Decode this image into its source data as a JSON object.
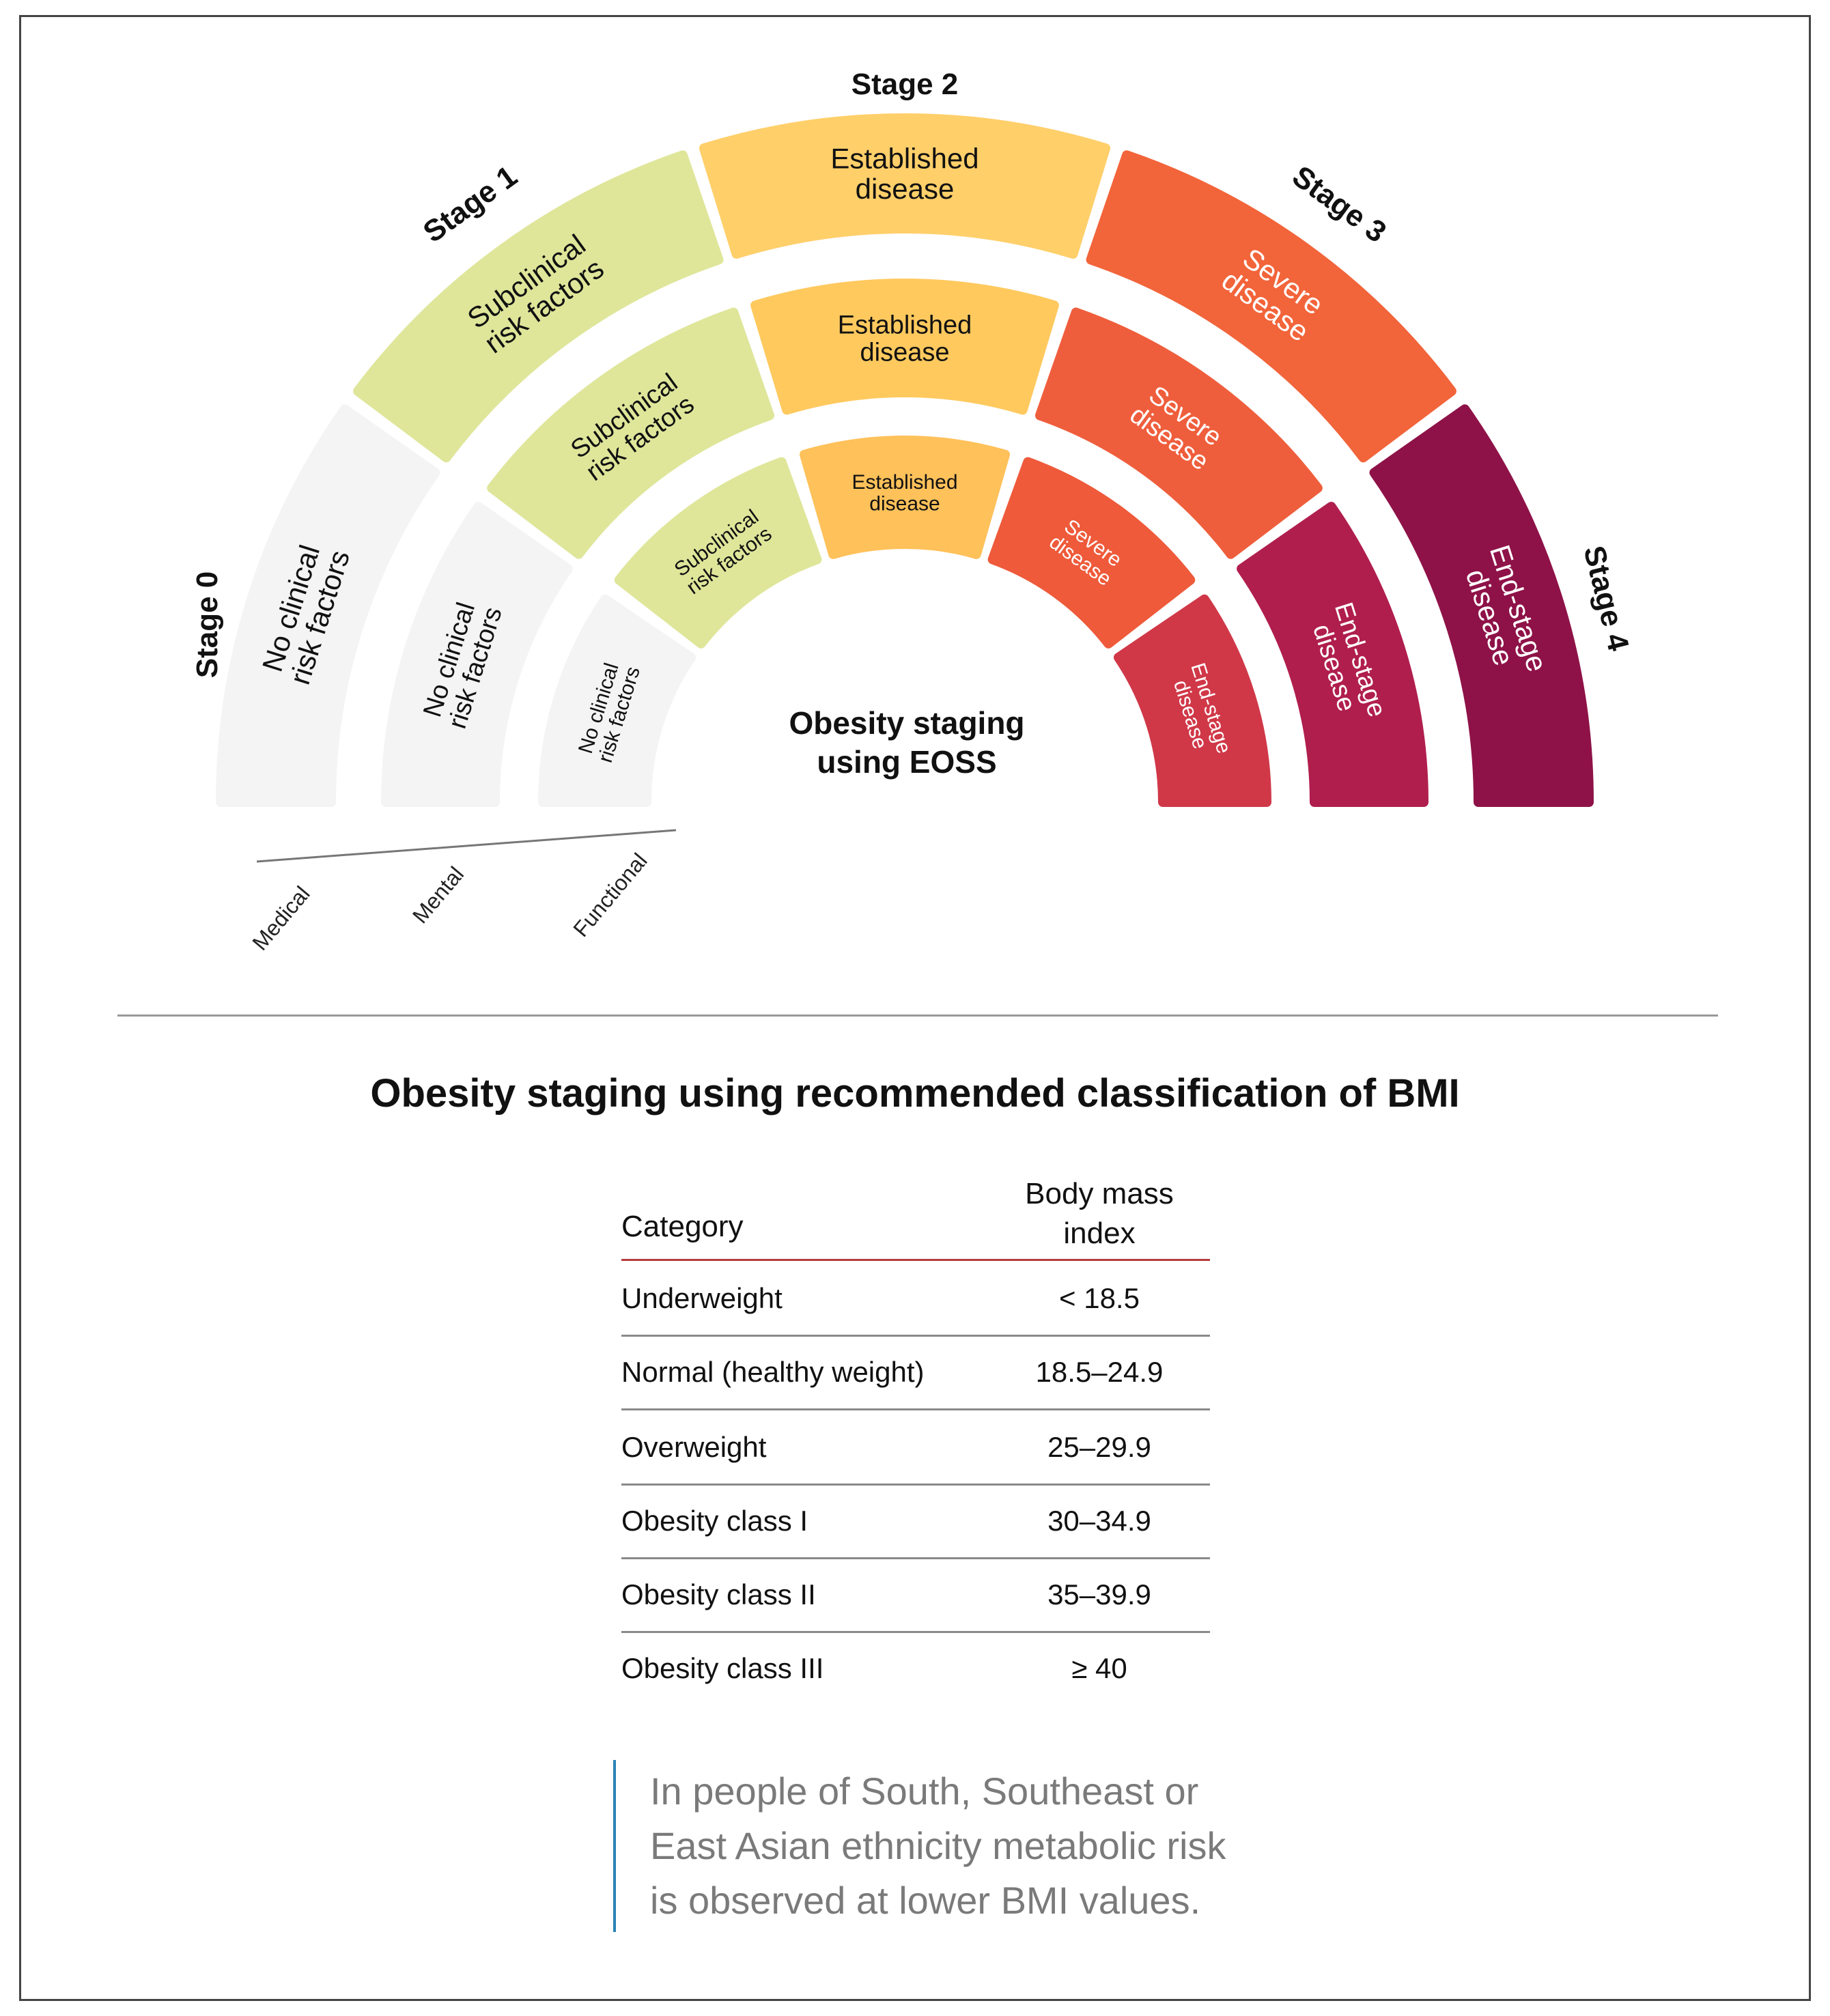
{
  "diagram": {
    "center_title_line1": "Obesity staging",
    "center_title_line2": "using EOSS",
    "stage_labels": [
      "Stage 0",
      "Stage 1",
      "Stage 2",
      "Stage 3",
      "Stage 4"
    ],
    "axis_labels": [
      "Medical",
      "Mental",
      "Functional"
    ],
    "rings": [
      {
        "name": "medical",
        "segments": [
          {
            "lines": [
              "No clinical",
              "risk factors"
            ],
            "color": "#f4f4f5",
            "text_color": "#111111"
          },
          {
            "lines": [
              "Subclinical",
              "risk factors"
            ],
            "color": "#dfe69a",
            "text_color": "#111111"
          },
          {
            "lines": [
              "Established",
              "disease"
            ],
            "color": "#ffcf6a",
            "text_color": "#111111"
          },
          {
            "lines": [
              "Severe",
              "disease"
            ],
            "color": "#f2643a",
            "text_color": "#ffffff"
          },
          {
            "lines": [
              "End-stage",
              "disease"
            ],
            "color": "#8e1248",
            "text_color": "#ffffff"
          }
        ]
      },
      {
        "name": "mental",
        "segments": [
          {
            "lines": [
              "No clinical",
              "risk factors"
            ],
            "color": "#f4f4f5",
            "text_color": "#111111"
          },
          {
            "lines": [
              "Subclinical",
              "risk factors"
            ],
            "color": "#dfe69a",
            "text_color": "#111111"
          },
          {
            "lines": [
              "Established",
              "disease"
            ],
            "color": "#ffc95e",
            "text_color": "#111111"
          },
          {
            "lines": [
              "Severe",
              "disease"
            ],
            "color": "#ef5e3c",
            "text_color": "#ffffff"
          },
          {
            "lines": [
              "End-stage",
              "disease"
            ],
            "color": "#b01e4e",
            "text_color": "#ffffff"
          }
        ]
      },
      {
        "name": "functional",
        "segments": [
          {
            "lines": [
              "No clinical",
              "risk factors"
            ],
            "color": "#f4f4f5",
            "text_color": "#111111"
          },
          {
            "lines": [
              "Subclinical",
              "risk factors"
            ],
            "color": "#dfe69a",
            "text_color": "#111111"
          },
          {
            "lines": [
              "Established",
              "disease"
            ],
            "color": "#ffc15a",
            "text_color": "#111111"
          },
          {
            "lines": [
              "Severe",
              "disease"
            ],
            "color": "#ee5a3a",
            "text_color": "#ffffff"
          },
          {
            "lines": [
              "End-stage",
              "disease"
            ],
            "color": "#d03848",
            "text_color": "#ffffff"
          }
        ]
      }
    ]
  },
  "table": {
    "title": "Obesity staging using recommended classification of BMI",
    "header_category": "Category",
    "header_bmi_line1": "Body mass",
    "header_bmi_line2": "index",
    "rows": [
      {
        "category": "Underweight",
        "bmi": "< 18.5"
      },
      {
        "category": "Normal (healthy weight)",
        "bmi": "18.5–24.9"
      },
      {
        "category": "Overweight",
        "bmi": "25–29.9"
      },
      {
        "category": "Obesity class I",
        "bmi": "30–34.9"
      },
      {
        "category": "Obesity class II",
        "bmi": "35–39.9"
      },
      {
        "category": "Obesity class III",
        "bmi": "≥ 40"
      }
    ]
  },
  "note": {
    "lines": [
      "In people of South, Southeast or",
      "East Asian ethnicity metabolic risk",
      "is observed at lower BMI values."
    ]
  }
}
